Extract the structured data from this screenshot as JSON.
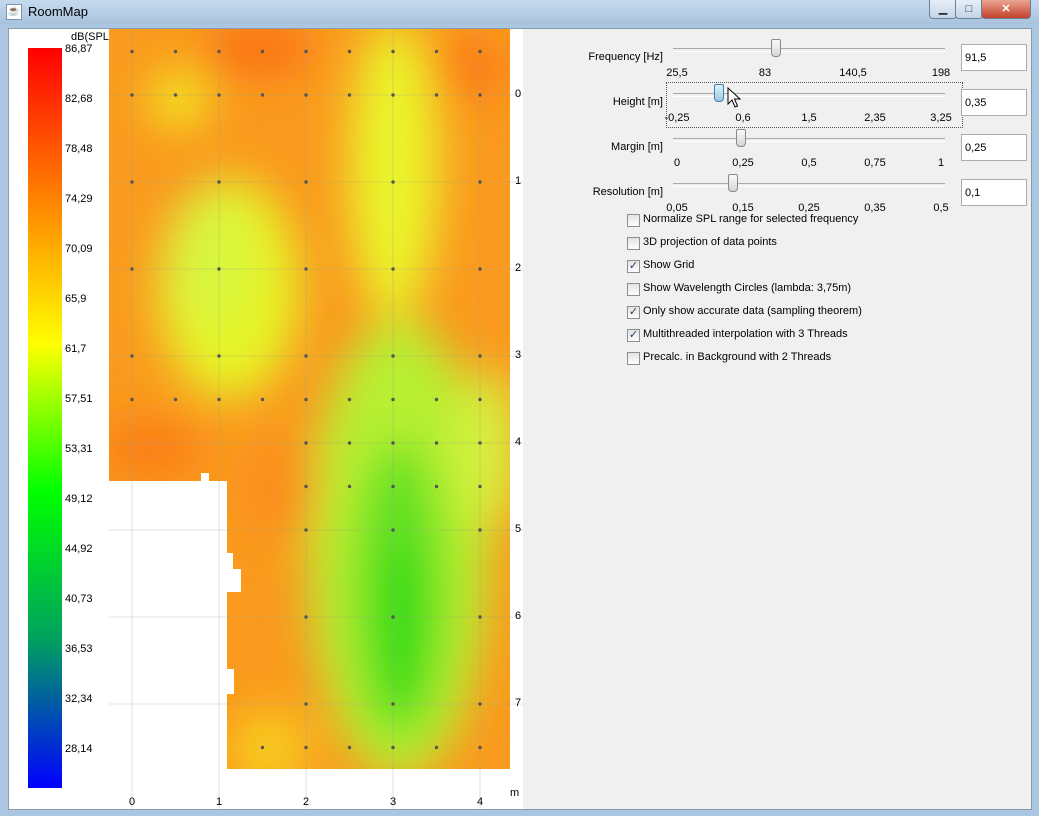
{
  "window": {
    "title": "RoomMap",
    "minimize_glyph": "▁",
    "maximize_glyph": "□",
    "close_glyph": "✕",
    "app_icon": "java-cup-icon"
  },
  "legend": {
    "unit": "dB(SPL)",
    "labels": [
      "86,87",
      "82,68",
      "78,48",
      "74,29",
      "70,09",
      "65,9",
      "61,7",
      "57,51",
      "53,31",
      "49,12",
      "44,92",
      "40,73",
      "36,53",
      "32,34",
      "28,14"
    ],
    "colors": [
      "#ff0000",
      "#ff8000",
      "#ffff00",
      "#00ff00",
      "#00a060",
      "#0000ff"
    ]
  },
  "map": {
    "x_axis_ticks": [
      "0",
      "1",
      "2",
      "3",
      "4"
    ],
    "y_axis_ticks": [
      "0",
      "1",
      "2",
      "3",
      "4",
      "5",
      "6",
      "7"
    ],
    "axis_unit": "m"
  },
  "sliders": [
    {
      "label": "Frequency [Hz]",
      "ticks": [
        "25,5",
        "83",
        "140,5",
        "198"
      ],
      "value": "91,5",
      "position": 0.38
    },
    {
      "label": "Height [m]",
      "ticks": [
        "-0,25",
        "0,6",
        "1,5",
        "2,35",
        "3,25"
      ],
      "value": "0,35",
      "position": 0.17,
      "focused": true
    },
    {
      "label": "Margin [m]",
      "ticks": [
        "0",
        "0,25",
        "0,5",
        "0,75",
        "1"
      ],
      "value": "0,25",
      "position": 0.25
    },
    {
      "label": "Resolution [m]",
      "ticks": [
        "0,05",
        "0,15",
        "0,25",
        "0,35",
        "0,5"
      ],
      "value": "0,1",
      "position": 0.22
    }
  ],
  "checkboxes": [
    {
      "label": "Normalize SPL range for selected frequency",
      "checked": false
    },
    {
      "label": "3D projection of data points",
      "checked": false
    },
    {
      "label": "Show Grid",
      "checked": true
    },
    {
      "label": "Show Wavelength Circles (lambda: 3,75m)",
      "checked": false
    },
    {
      "label": "Only show accurate data (sampling theorem)",
      "checked": true
    },
    {
      "label": "Multithreaded interpolation with 3 Threads",
      "checked": true
    },
    {
      "label": "Precalc. in Background with 2 Threads",
      "checked": false
    }
  ]
}
